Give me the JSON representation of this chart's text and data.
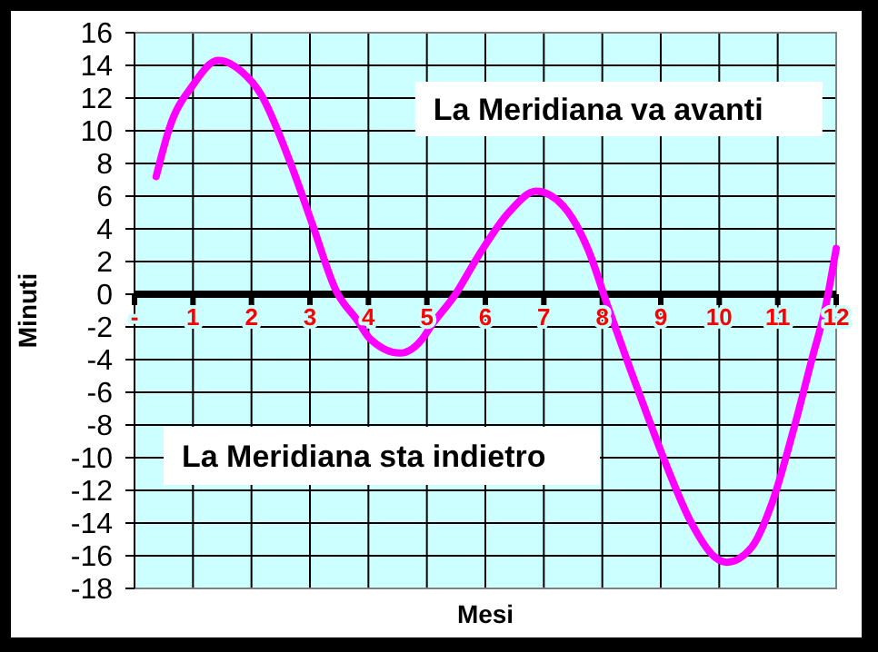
{
  "chart_data": {
    "type": "line",
    "xlabel": "Mesi",
    "ylabel": "Minuti",
    "annotations": [
      "La Meridiana va avanti",
      "La Meridiana sta indietro"
    ],
    "x": [
      0.37,
      0.6,
      1.0,
      1.43,
      1.84,
      2.15,
      2.67,
      3.04,
      3.45,
      3.81,
      4.02,
      4.54,
      4.95,
      5.06,
      5.47,
      5.89,
      6.4,
      6.87,
      7.33,
      7.75,
      8.11,
      8.48,
      8.79,
      9.1,
      9.51,
      9.93,
      10.13,
      10.55,
      10.91,
      11.27,
      11.59,
      11.81,
      12
    ],
    "series": [
      {
        "color": "#ff00ff",
        "values": [
          7.2,
          10.2,
          12.8,
          14.3,
          13.6,
          12.3,
          8,
          4.3,
          0.2,
          -1.6,
          -2.7,
          -3.6,
          -2.6,
          -2,
          -0.1,
          2.4,
          5.0,
          6.3,
          5.4,
          2.8,
          -0.9,
          -4.6,
          -7.6,
          -10.5,
          -13.9,
          -16.1,
          -16.4,
          -15.5,
          -12.7,
          -8.3,
          -3.9,
          -0.9,
          2.8
        ]
      }
    ],
    "xlim": [
      0,
      12
    ],
    "xticks": [
      {
        "value": 0,
        "label": "-"
      },
      1,
      2,
      3,
      4,
      5,
      6,
      7,
      8,
      9,
      10,
      11,
      12
    ],
    "ylim": [
      -18,
      16
    ],
    "yticks": [
      -18,
      -16,
      -14,
      -12,
      -10,
      -8,
      -6,
      -4,
      -2,
      0,
      2,
      4,
      6,
      8,
      10,
      12,
      14,
      16
    ],
    "grid": true,
    "marker": "none",
    "line_style": "solid"
  }
}
